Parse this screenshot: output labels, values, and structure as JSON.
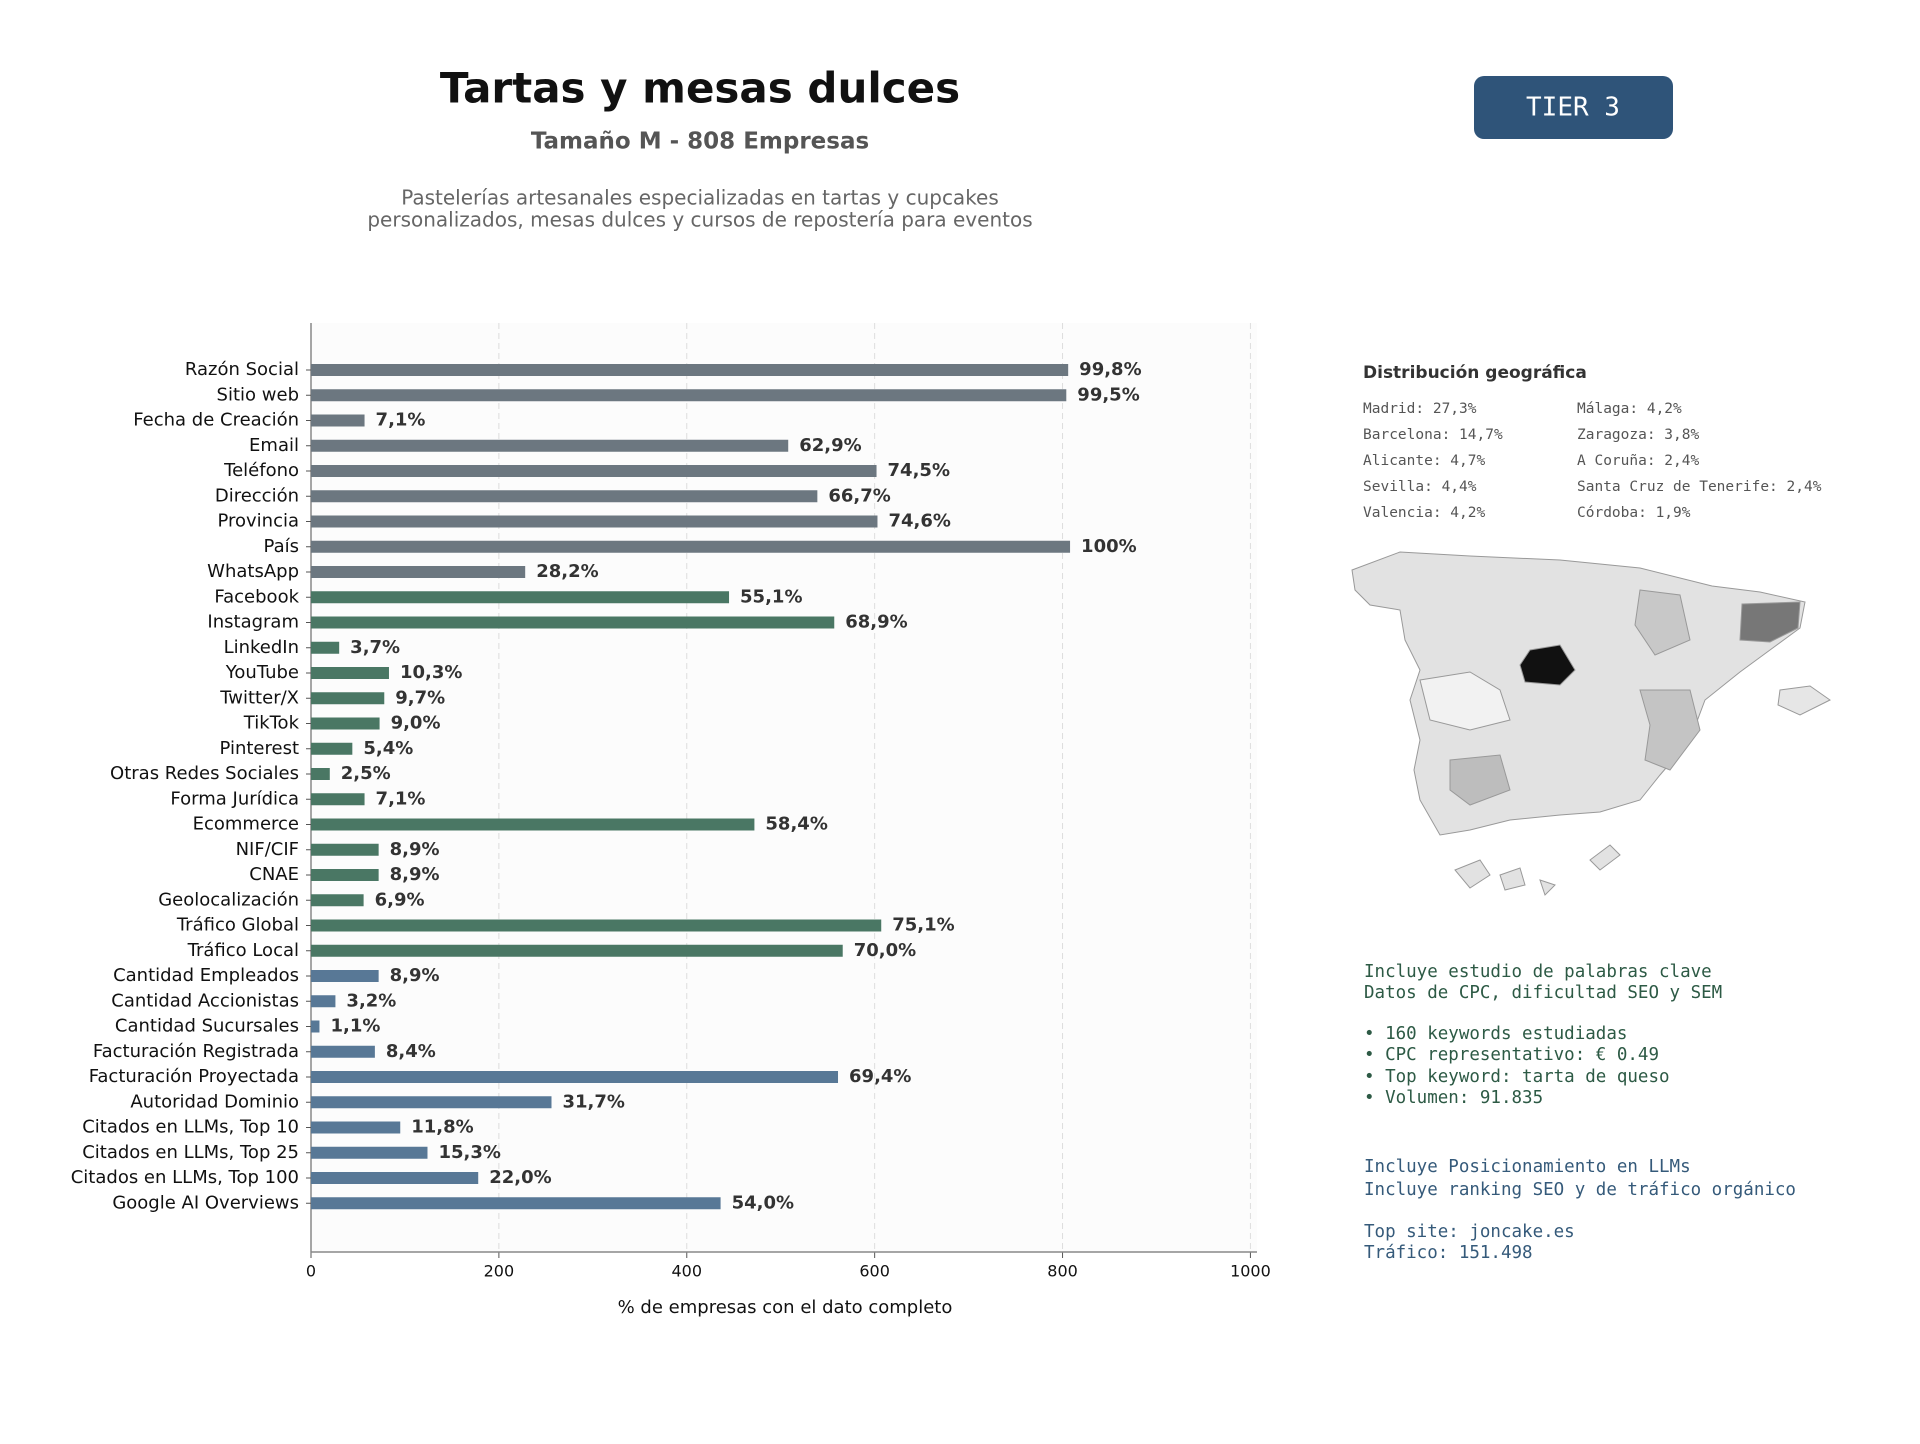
{
  "chart_data": {
    "type": "bar",
    "orientation": "horizontal",
    "title": "Tartas y mesas dulces",
    "subtitle": "Tamaño M - 808 Empresas",
    "description": [
      "Pastelerías artesanales especializadas en tartas y cupcakes",
      "personalizados, mesas dulces y cursos de repostería para eventos"
    ],
    "xlabel": "% de empresas con el dato completo",
    "categories": [
      "Razón Social",
      "Sitio web",
      "Fecha de Creación",
      "Email",
      "Teléfono",
      "Dirección",
      "Provincia",
      "País",
      "WhatsApp",
      "Facebook",
      "Instagram",
      "LinkedIn",
      "YouTube",
      "Twitter/X",
      "TikTok",
      "Pinterest",
      "Otras Redes Sociales",
      "Forma Jurídica",
      "Ecommerce",
      "NIF/CIF",
      "CNAE",
      "Geolocalización",
      "Tráfico Global",
      "Tráfico Local",
      "Cantidad Empleados",
      "Cantidad Accionistas",
      "Cantidad Sucursales",
      "Facturación Registrada",
      "Facturación Proyectada",
      "Autoridad Dominio",
      "Citados en LLMs, Top 10",
      "Citados en LLMs, Top 25",
      "Citados en LLMs, Top 100",
      "Google AI Overviews"
    ],
    "values": [
      806,
      804,
      57,
      508,
      602,
      539,
      603,
      808,
      228,
      445,
      557,
      30,
      83,
      78,
      73,
      44,
      20,
      57,
      472,
      72,
      72,
      56,
      607,
      566,
      72,
      26,
      9,
      68,
      561,
      256,
      95,
      124,
      178,
      436
    ],
    "value_labels": [
      "99,8%",
      "99,5%",
      "7,1%",
      "62,9%",
      "74,5%",
      "66,7%",
      "74,6%",
      "100%",
      "28,2%",
      "55,1%",
      "68,9%",
      "3,7%",
      "10,3%",
      "9,7%",
      "9,0%",
      "5,4%",
      "2,5%",
      "7,1%",
      "58,4%",
      "8,9%",
      "8,9%",
      "6,9%",
      "75,1%",
      "70,0%",
      "8,9%",
      "3,2%",
      "1,1%",
      "8,4%",
      "69,4%",
      "31,7%",
      "11,8%",
      "15,3%",
      "22,0%",
      "54,0%"
    ],
    "colors": [
      "#6c7780",
      "#6c7780",
      "#6c7780",
      "#6c7780",
      "#6c7780",
      "#6c7780",
      "#6c7780",
      "#6c7780",
      "#6c7780",
      "#4a7764",
      "#4a7764",
      "#4a7764",
      "#4a7764",
      "#4a7764",
      "#4a7764",
      "#4a7764",
      "#4a7764",
      "#4a7764",
      "#4a7764",
      "#4a7764",
      "#4a7764",
      "#4a7764",
      "#4a7764",
      "#4a7764",
      "#587896",
      "#587896",
      "#587896",
      "#587896",
      "#587896",
      "#587896",
      "#587896",
      "#587896",
      "#587896",
      "#587896"
    ],
    "xlim": [
      0,
      1007
    ],
    "xticks": [
      0,
      200,
      400,
      600,
      800,
      1000
    ],
    "grid": true
  },
  "badge": "TIER 3",
  "geo": {
    "title": "Distribución geográfica",
    "items": [
      "Madrid: 27,3%",
      "Barcelona: 14,7%",
      "Alicante: 4,7%",
      "Sevilla: 4,4%",
      "Valencia: 4,2%",
      "Málaga: 4,2%",
      "Zaragoza: 3,8%",
      "A Coruña: 2,4%",
      "Santa Cruz de Tenerife: 2,4%",
      "Córdoba: 1,9%"
    ]
  },
  "keywords": [
    "Incluye estudio de palabras clave",
    "Datos de CPC, dificultad SEO y SEM",
    "• 160 keywords estudiadas",
    "• CPC representativo: € 0.49",
    "• Top keyword: tarta de queso",
    "• Volumen: 91.835"
  ],
  "llm": [
    "Incluye Posicionamiento en LLMs",
    "Incluye ranking SEO y de tráfico orgánico",
    "Top site: joncake.es",
    "Tráfico: 151.498"
  ]
}
